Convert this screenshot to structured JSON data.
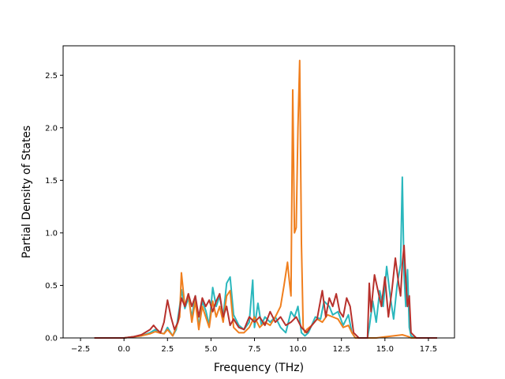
{
  "chart_data": {
    "type": "line",
    "title": "",
    "xlabel": "Frequency (THz)",
    "ylabel": "Partial Density of States",
    "xlim": [
      -3.5,
      19.0
    ],
    "ylim": [
      0.0,
      2.78
    ],
    "xticks": [
      -2.5,
      0.0,
      2.5,
      5.0,
      7.5,
      10.0,
      12.5,
      15.0,
      17.5
    ],
    "xtick_labels": [
      "−2.5",
      "0.0",
      "2.5",
      "5.0",
      "7.5",
      "10.0",
      "12.5",
      "15.0",
      "17.5"
    ],
    "yticks": [
      0.0,
      0.5,
      1.0,
      1.5,
      2.0,
      2.5
    ],
    "ytick_labels": [
      "0.0",
      "0.5",
      "1.0",
      "1.5",
      "2.0",
      "2.5"
    ],
    "grid": false,
    "legend": "none",
    "series": [
      {
        "color": "#2ab7bd",
        "x": [
          -1.7,
          0.0,
          0.5,
          1.0,
          1.5,
          1.8,
          2.0,
          2.3,
          2.5,
          2.8,
          3.0,
          3.2,
          3.3,
          3.5,
          3.7,
          3.9,
          4.1,
          4.3,
          4.5,
          4.7,
          4.9,
          5.1,
          5.3,
          5.5,
          5.7,
          5.9,
          6.1,
          6.3,
          6.6,
          6.9,
          7.2,
          7.4,
          7.5,
          7.7,
          7.9,
          8.1,
          8.4,
          8.7,
          9.0,
          9.3,
          9.6,
          9.8,
          10.0,
          10.2,
          10.4,
          10.6,
          11.0,
          11.3,
          11.5,
          11.8,
          12.0,
          12.3,
          12.6,
          12.9,
          13.1,
          13.3,
          13.6,
          14.0,
          14.1,
          14.3,
          14.5,
          14.7,
          14.9,
          15.1,
          15.3,
          15.5,
          15.7,
          15.9,
          16.0,
          16.1,
          16.2,
          16.3,
          16.4,
          16.5,
          16.7,
          17.0,
          18.0
        ],
        "values": [
          0.0,
          0.0,
          0.01,
          0.02,
          0.05,
          0.08,
          0.05,
          0.04,
          0.1,
          0.02,
          0.08,
          0.3,
          0.46,
          0.28,
          0.38,
          0.2,
          0.4,
          0.1,
          0.35,
          0.26,
          0.12,
          0.48,
          0.3,
          0.4,
          0.2,
          0.52,
          0.58,
          0.22,
          0.12,
          0.08,
          0.15,
          0.55,
          0.1,
          0.33,
          0.12,
          0.2,
          0.15,
          0.2,
          0.1,
          0.05,
          0.25,
          0.2,
          0.3,
          0.05,
          0.02,
          0.05,
          0.2,
          0.18,
          0.35,
          0.3,
          0.22,
          0.25,
          0.12,
          0.22,
          0.05,
          0.0,
          0.0,
          0.0,
          0.1,
          0.35,
          0.15,
          0.45,
          0.3,
          0.68,
          0.4,
          0.18,
          0.5,
          0.7,
          1.53,
          0.6,
          0.3,
          0.65,
          0.1,
          0.02,
          0.0,
          0.0,
          0.0
        ]
      },
      {
        "color": "#f07f1e",
        "x": [
          -1.7,
          0.0,
          0.5,
          1.0,
          1.5,
          1.8,
          2.0,
          2.3,
          2.5,
          2.8,
          3.0,
          3.2,
          3.3,
          3.5,
          3.7,
          3.9,
          4.1,
          4.3,
          4.5,
          4.7,
          4.9,
          5.1,
          5.3,
          5.5,
          5.7,
          5.9,
          6.1,
          6.3,
          6.6,
          6.9,
          7.2,
          7.5,
          7.8,
          8.1,
          8.4,
          8.7,
          9.0,
          9.2,
          9.4,
          9.5,
          9.6,
          9.7,
          9.8,
          9.9,
          10.0,
          10.1,
          10.2,
          10.3,
          10.4,
          10.5,
          10.8,
          11.1,
          11.4,
          11.7,
          12.0,
          12.3,
          12.6,
          12.9,
          13.1,
          13.3,
          14.0,
          14.5,
          15.0,
          15.5,
          16.0,
          16.2,
          16.4,
          16.5,
          17.0,
          18.0
        ],
        "values": [
          0.0,
          0.0,
          0.01,
          0.02,
          0.04,
          0.06,
          0.05,
          0.04,
          0.08,
          0.02,
          0.1,
          0.2,
          0.62,
          0.3,
          0.42,
          0.15,
          0.35,
          0.08,
          0.3,
          0.2,
          0.1,
          0.35,
          0.2,
          0.3,
          0.15,
          0.4,
          0.45,
          0.1,
          0.05,
          0.05,
          0.1,
          0.2,
          0.1,
          0.15,
          0.12,
          0.2,
          0.3,
          0.5,
          0.72,
          0.55,
          0.4,
          2.36,
          1.0,
          1.05,
          2.0,
          2.64,
          0.9,
          0.1,
          0.05,
          0.08,
          0.12,
          0.18,
          0.15,
          0.22,
          0.2,
          0.18,
          0.1,
          0.12,
          0.05,
          0.0,
          0.0,
          0.0,
          0.01,
          0.02,
          0.03,
          0.02,
          0.01,
          0.0,
          0.0,
          0.0
        ]
      },
      {
        "color": "#b7312c",
        "x": [
          -1.7,
          0.0,
          0.5,
          1.0,
          1.5,
          1.7,
          1.9,
          2.1,
          2.3,
          2.5,
          2.7,
          2.9,
          3.1,
          3.3,
          3.5,
          3.7,
          3.9,
          4.1,
          4.3,
          4.5,
          4.7,
          4.9,
          5.1,
          5.3,
          5.5,
          5.7,
          5.9,
          6.1,
          6.3,
          6.6,
          6.9,
          7.2,
          7.5,
          7.8,
          8.1,
          8.4,
          8.7,
          9.0,
          9.3,
          9.6,
          9.9,
          10.2,
          10.5,
          10.8,
          11.1,
          11.4,
          11.6,
          11.8,
          12.0,
          12.2,
          12.4,
          12.6,
          12.8,
          13.0,
          13.2,
          13.5,
          14.0,
          14.1,
          14.2,
          14.4,
          14.6,
          14.8,
          15.0,
          15.2,
          15.4,
          15.6,
          15.8,
          15.9,
          16.0,
          16.1,
          16.2,
          16.3,
          16.4,
          16.5,
          16.8,
          18.0
        ],
        "values": [
          0.0,
          0.0,
          0.01,
          0.03,
          0.08,
          0.12,
          0.08,
          0.05,
          0.15,
          0.36,
          0.2,
          0.08,
          0.15,
          0.38,
          0.3,
          0.42,
          0.3,
          0.4,
          0.2,
          0.38,
          0.3,
          0.36,
          0.25,
          0.35,
          0.42,
          0.2,
          0.3,
          0.12,
          0.18,
          0.1,
          0.08,
          0.2,
          0.15,
          0.2,
          0.12,
          0.25,
          0.15,
          0.2,
          0.12,
          0.15,
          0.2,
          0.1,
          0.05,
          0.12,
          0.18,
          0.45,
          0.2,
          0.38,
          0.3,
          0.42,
          0.25,
          0.2,
          0.38,
          0.3,
          0.05,
          0.0,
          0.0,
          0.52,
          0.25,
          0.6,
          0.45,
          0.3,
          0.58,
          0.2,
          0.45,
          0.76,
          0.5,
          0.4,
          0.7,
          0.88,
          0.55,
          0.3,
          0.4,
          0.05,
          0.0,
          0.0
        ]
      }
    ]
  }
}
